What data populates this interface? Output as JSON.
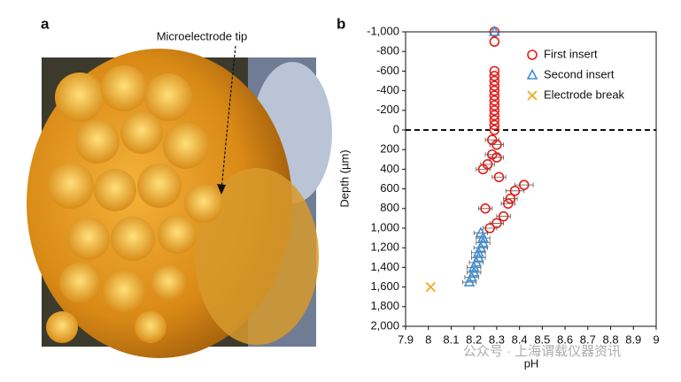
{
  "photo": {
    "label": "a",
    "annotation": "Microelectrode tip"
  },
  "watermark": "公众号 · 上海谓载仪器资讯",
  "chart_data": {
    "type": "scatter",
    "panel_label": "b",
    "x_label": "pH",
    "y_label": "Depth (µm)",
    "xlim": [
      7.9,
      9
    ],
    "xticks": [
      7.9,
      8,
      8.1,
      8.2,
      8.3,
      8.4,
      8.5,
      8.6,
      8.7,
      8.8,
      8.9,
      9
    ],
    "ylim": [
      -1000,
      2000
    ],
    "y_inverted": true,
    "yticks": [
      {
        "value": -1000,
        "label": "-1,000"
      },
      -800,
      -600,
      -400,
      -200,
      0,
      200,
      400,
      600,
      800,
      {
        "value": 1000,
        "label": "1,000"
      },
      {
        "value": 1200,
        "label": "1,200"
      },
      {
        "value": 1400,
        "label": "1,400"
      },
      {
        "value": 1600,
        "label": "1,600"
      },
      {
        "value": 1800,
        "label": "1,800"
      },
      {
        "value": 2000,
        "label": "2,000"
      }
    ],
    "hline": 0,
    "legend": "upper right",
    "series": [
      {
        "name": "First insert",
        "marker": "circle",
        "color": "#e0201b",
        "x": [
          8.29,
          8.29,
          8.29,
          8.29,
          8.29,
          8.29,
          8.29,
          8.29,
          8.29,
          8.29,
          8.29,
          8.29,
          8.29,
          8.29,
          8.29,
          8.28,
          8.3,
          8.28,
          8.3,
          8.26,
          8.24,
          8.31,
          8.42,
          8.38,
          8.36,
          8.35,
          8.25,
          8.33,
          8.3,
          8.27
        ],
        "y": [
          -1000,
          -900,
          -600,
          -550,
          -500,
          -450,
          -400,
          -350,
          -300,
          -250,
          -200,
          -150,
          -100,
          -50,
          0,
          100,
          150,
          250,
          280,
          350,
          400,
          480,
          560,
          620,
          700,
          750,
          800,
          880,
          950,
          1000
        ],
        "xerr": [
          null,
          null,
          null,
          null,
          null,
          null,
          null,
          null,
          null,
          null,
          null,
          null,
          null,
          null,
          null,
          0.03,
          0.03,
          0.03,
          0.03,
          0.03,
          0.03,
          0.03,
          0.04,
          0.04,
          0.03,
          0.03,
          0.03,
          0.03,
          0.03,
          0.03
        ]
      },
      {
        "name": "Second insert",
        "marker": "triangle",
        "color": "#3f8fd2",
        "x": [
          8.29,
          8.23,
          8.24,
          8.24,
          8.23,
          8.22,
          8.22,
          8.21,
          8.2,
          8.2,
          8.19,
          8.18
        ],
        "y": [
          -1000,
          1050,
          1100,
          1150,
          1200,
          1250,
          1300,
          1350,
          1400,
          1450,
          1500,
          1550
        ],
        "xerr": [
          null,
          0.03,
          0.03,
          0.03,
          0.03,
          0.03,
          0.03,
          0.03,
          0.03,
          0.03,
          0.03,
          0.03
        ]
      },
      {
        "name": "Electrode break",
        "marker": "x",
        "color": "#f0a820",
        "x": [
          8.01
        ],
        "y": [
          1600
        ],
        "xerr": [
          null
        ]
      }
    ]
  }
}
